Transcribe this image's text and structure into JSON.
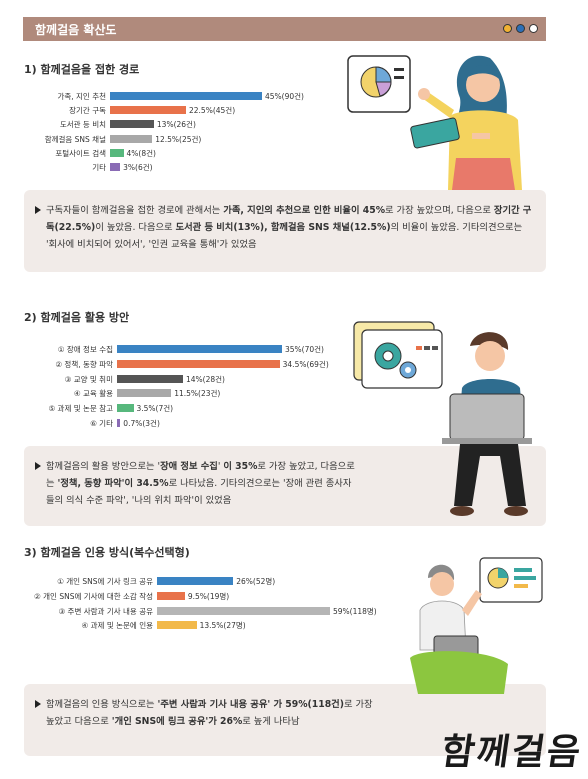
{
  "header": {
    "title": "함께걸음 확산도",
    "dot_colors": [
      "#f2b233",
      "#2c6fb7",
      "#ffffff"
    ]
  },
  "sections": [
    {
      "title": "1) 함께걸음을 접한 경로",
      "summary_parts": [
        {
          "t": "구독자들이 함께걸음을 접한 경로에 관해서는 ",
          "b": false
        },
        {
          "t": "가족, 지인의 추천으로 인한 비율이 45%",
          "b": true
        },
        {
          "t": "로 가장 높았으며, 다음으로 ",
          "b": false
        },
        {
          "t": "장기간 구독(22.5%)",
          "b": true
        },
        {
          "t": "이 높았음. 다음으로 ",
          "b": false
        },
        {
          "t": "도서관 등 비치(13%), 함께걸음 SNS 채널(12.5%)",
          "b": true
        },
        {
          "t": "의 비율이 높았음. 기타의견으로는 '회사에 비치되어 있어서', '인권 교육을 통해'가 있었음",
          "b": false
        }
      ]
    },
    {
      "title": "2) 함께걸음 활용 방안",
      "summary_parts": [
        {
          "t": "함께걸음의 활용 방안으로는 '",
          "b": false
        },
        {
          "t": "장애 정보 수집",
          "b": true
        },
        {
          "t": "' ",
          "b": false
        },
        {
          "t": "이 35%",
          "b": true
        },
        {
          "t": "로 가장 높았고, 다음으로는 ",
          "b": false
        },
        {
          "t": "'정책, 동향 파악'이 34.5%",
          "b": true
        },
        {
          "t": "로 나타났음. 기타의견으로는 '장애 관련 종사자들의 의식 수준 파악', '나의 위치 파악'이 있었음",
          "b": false
        }
      ]
    },
    {
      "title": "3) 함께걸음 인용 방식(복수선택형)",
      "summary_parts": [
        {
          "t": "함께걸음의 인용 방식으로는 ",
          "b": false
        },
        {
          "t": "'주변 사람과 기사 내용 공유' 가 59%(118건)",
          "b": true
        },
        {
          "t": "로 가장 높았고 다음으로 ",
          "b": false
        },
        {
          "t": "'개인 SNS에 링크 공유'가 26%",
          "b": true
        },
        {
          "t": "로 높게 나타남",
          "b": false
        }
      ]
    }
  ],
  "chart_data": [
    {
      "type": "bar",
      "orientation": "horizontal",
      "title": "1) 함께걸음을 접한 경로",
      "categories": [
        "가족, 지인 추천",
        "장기간 구독",
        "도서관 등 비치",
        "함께걸음 SNS 채널",
        "포털사이트 검색",
        "기타"
      ],
      "values": [
        45,
        22.5,
        13,
        12.5,
        4,
        3
      ],
      "value_labels": [
        "45%(90건)",
        "22.5%(45건)",
        "13%(26건)",
        "12.5%(25건)",
        "4%(8건)",
        "3%(6건)"
      ],
      "colors": [
        "#3a83c3",
        "#e8724a",
        "#555555",
        "#a8a8a8",
        "#57b87d",
        "#8a6bb5"
      ],
      "xlim": [
        0,
        45
      ]
    },
    {
      "type": "bar",
      "orientation": "horizontal",
      "title": "2) 함께걸음 활용 방안",
      "categories": [
        "① 장애 정보 수집",
        "② 정책, 동향 파악",
        "③ 교양 및 취미",
        "④ 교육 활용",
        "⑤ 과제 및 논문 참고",
        "⑥ 기타"
      ],
      "values": [
        35,
        34.5,
        14,
        11.5,
        3.5,
        0.7
      ],
      "value_labels": [
        "35%(70건)",
        "34.5%(69건)",
        "14%(28건)",
        "11.5%(23건)",
        "3.5%(7건)",
        "0.7%(3건)"
      ],
      "colors": [
        "#3a83c3",
        "#e8724a",
        "#555555",
        "#a8a8a8",
        "#57b87d",
        "#8a6bb5"
      ],
      "xlim": [
        0,
        35
      ]
    },
    {
      "type": "bar",
      "orientation": "horizontal",
      "title": "3) 함께걸음 인용 방식(복수선택형)",
      "categories": [
        "① 개인 SNS에 기사 링크 공유",
        "② 개인 SNS에 기사에 대한 소감 작성",
        "③ 주변 사람과 기사 내용 공유",
        "④ 과제 및 논문에 인용"
      ],
      "values": [
        26,
        9.5,
        59,
        13.5
      ],
      "value_labels": [
        "26%(52명)",
        "9.5%(19명)",
        "59%(118명)",
        "13.5%(27명)"
      ],
      "colors": [
        "#3a83c3",
        "#e8724a",
        "#b5b5b5",
        "#f2b94a"
      ],
      "xlim": [
        0,
        59
      ]
    }
  ],
  "watermark": "함께걸음"
}
